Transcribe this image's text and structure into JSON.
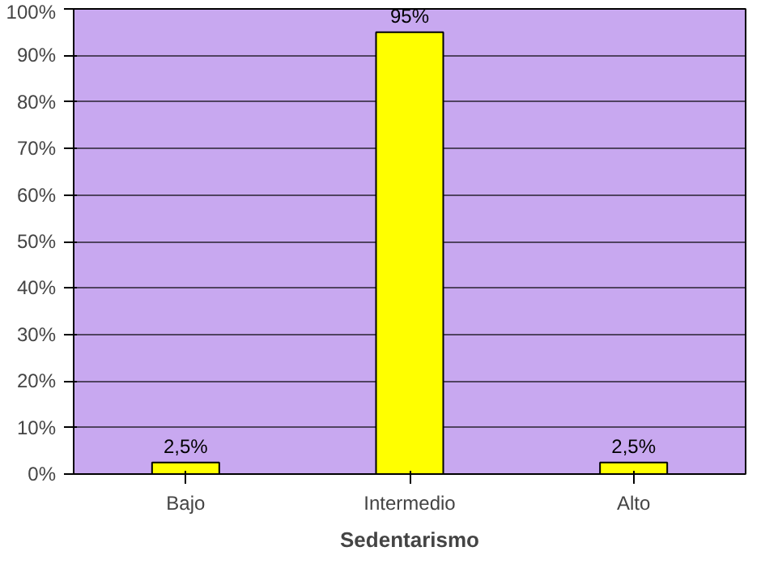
{
  "chart_data": {
    "type": "bar",
    "xlabel": "Sedentarismo",
    "categories": [
      "Bajo",
      "Intermedio",
      "Alto"
    ],
    "values": [
      2.5,
      95,
      2.5
    ],
    "color": "#ffff00",
    "value_labels": [
      "2,5%",
      "95%",
      "2,5%"
    ],
    "ylim": [
      0,
      100
    ],
    "yticks": [
      {
        "value": 0,
        "label": "0%"
      },
      {
        "value": 10,
        "label": "10%"
      },
      {
        "value": 20,
        "label": "20%"
      },
      {
        "value": 30,
        "label": "30%"
      },
      {
        "value": 40,
        "label": "40%"
      },
      {
        "value": 50,
        "label": "50%"
      },
      {
        "value": 60,
        "label": "60%"
      },
      {
        "value": 70,
        "label": "70%"
      },
      {
        "value": 80,
        "label": "80%"
      },
      {
        "value": 90,
        "label": "90%"
      },
      {
        "value": 100,
        "label": "100%"
      }
    ],
    "grid": "y"
  }
}
